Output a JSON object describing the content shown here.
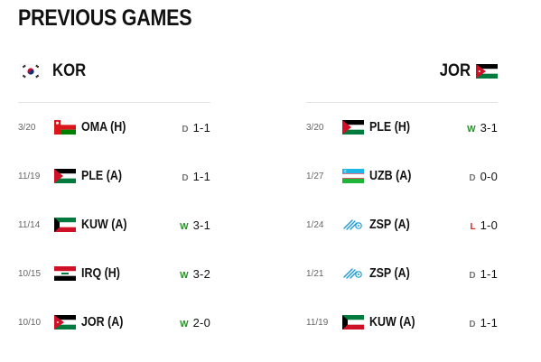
{
  "page": {
    "title": "PREVIOUS GAMES"
  },
  "home": {
    "code": "KOR",
    "flag": "kor-flag-icon"
  },
  "away": {
    "code": "JOR",
    "flag": "jor-flag-icon"
  },
  "colors": {
    "win": "#2a8c2a",
    "draw": "#777777",
    "loss": "#dd2222"
  },
  "home_games": [
    {
      "date": "3/20",
      "flag": "oma",
      "opponent": "OMA (H)",
      "result": "D",
      "score": "1-1"
    },
    {
      "date": "11/19",
      "flag": "ple",
      "opponent": "PLE (A)",
      "result": "D",
      "score": "1-1"
    },
    {
      "date": "11/14",
      "flag": "kuw",
      "opponent": "KUW (A)",
      "result": "W",
      "score": "3-1"
    },
    {
      "date": "10/15",
      "flag": "irq",
      "opponent": "IRQ (H)",
      "result": "W",
      "score": "3-2"
    },
    {
      "date": "10/10",
      "flag": "jor",
      "opponent": "JOR (A)",
      "result": "W",
      "score": "2-0"
    }
  ],
  "away_games": [
    {
      "date": "3/20",
      "flag": "ple",
      "opponent": "PLE (H)",
      "result": "W",
      "score": "3-1"
    },
    {
      "date": "1/27",
      "flag": "uzb",
      "opponent": "UZB (A)",
      "result": "D",
      "score": "0-0"
    },
    {
      "date": "1/24",
      "flag": "zsp",
      "opponent": "ZSP (A)",
      "result": "L",
      "score": "1-0"
    },
    {
      "date": "1/21",
      "flag": "zsp",
      "opponent": "ZSP (A)",
      "result": "D",
      "score": "1-1"
    },
    {
      "date": "11/19",
      "flag": "kuw",
      "opponent": "KUW (A)",
      "result": "D",
      "score": "1-1"
    }
  ]
}
